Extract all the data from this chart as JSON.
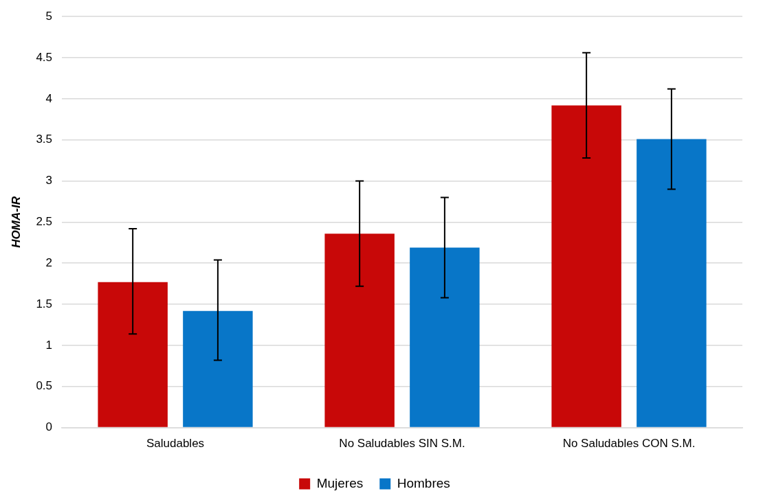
{
  "chart_data": {
    "type": "bar",
    "ylabel": "HOMA-IR",
    "categories": [
      "Saludables",
      "No Saludables SIN S.M.",
      "No Saludables CON S.M."
    ],
    "series": [
      {
        "name": "Mujeres",
        "color": "#c80808",
        "values": [
          1.77,
          2.36,
          3.92
        ],
        "errors": [
          [
            1.14,
            2.42
          ],
          [
            1.72,
            3.0
          ],
          [
            3.28,
            4.56
          ]
        ]
      },
      {
        "name": "Hombres",
        "color": "#0876c8",
        "values": [
          1.42,
          2.19,
          3.51
        ],
        "errors": [
          [
            0.82,
            2.04
          ],
          [
            1.58,
            2.8
          ],
          [
            2.9,
            4.12
          ]
        ]
      }
    ],
    "ylim": [
      0,
      5
    ],
    "yticks": [
      0,
      0.5,
      1,
      1.5,
      2,
      2.5,
      3,
      3.5,
      4,
      4.5,
      5
    ],
    "grid": "y",
    "legend": "bottom"
  }
}
